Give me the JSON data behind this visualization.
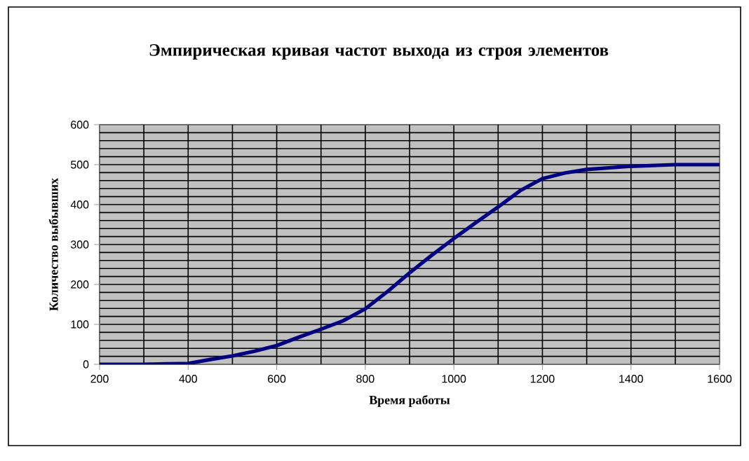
{
  "chart_data": {
    "type": "line",
    "title": "Эмпирическая кривая частот выхода из строя элементов",
    "xlabel": "Время работы",
    "ylabel": "Количество выбывших",
    "x": [
      200,
      300,
      350,
      400,
      450,
      500,
      550,
      600,
      650,
      700,
      750,
      800,
      850,
      900,
      950,
      1000,
      1050,
      1100,
      1150,
      1200,
      1250,
      1300,
      1400,
      1500,
      1600
    ],
    "series": [
      {
        "color": "#000080",
        "values": [
          0,
          0,
          1,
          2,
          12,
          21,
          33,
          47,
          68,
          88,
          109,
          139,
          182,
          229,
          273,
          315,
          355,
          394,
          435,
          465,
          479,
          488,
          496,
          500,
          500
        ]
      }
    ],
    "xlim": [
      200,
      1600
    ],
    "ylim": [
      0,
      600
    ],
    "xticks": [
      200,
      {
        "value": 300,
        "label": null
      },
      400,
      {
        "value": 500,
        "label": null
      },
      600,
      {
        "value": 700,
        "label": null
      },
      800,
      {
        "value": 900,
        "label": null
      },
      1000,
      {
        "value": 1100,
        "label": null
      },
      1200,
      {
        "value": 1300,
        "label": null
      },
      1400,
      {
        "value": 1500,
        "label": null
      },
      1600
    ],
    "yticks": [
      0,
      {
        "value": 20,
        "label": null
      },
      {
        "value": 40,
        "label": null
      },
      {
        "value": 60,
        "label": null
      },
      {
        "value": 80,
        "label": null
      },
      100,
      {
        "value": 120,
        "label": null
      },
      {
        "value": 140,
        "label": null
      },
      {
        "value": 160,
        "label": null
      },
      {
        "value": 180,
        "label": null
      },
      200,
      {
        "value": 220,
        "label": null
      },
      {
        "value": 240,
        "label": null
      },
      {
        "value": 260,
        "label": null
      },
      {
        "value": 280,
        "label": null
      },
      300,
      {
        "value": 320,
        "label": null
      },
      {
        "value": 340,
        "label": null
      },
      {
        "value": 360,
        "label": null
      },
      {
        "value": 380,
        "label": null
      },
      400,
      {
        "value": 420,
        "label": null
      },
      {
        "value": 440,
        "label": null
      },
      {
        "value": 460,
        "label": null
      },
      {
        "value": 480,
        "label": null
      },
      500,
      {
        "value": 520,
        "label": null
      },
      {
        "value": 540,
        "label": null
      },
      {
        "value": 560,
        "label": null
      },
      {
        "value": 580,
        "label": null
      },
      600
    ],
    "grid": true,
    "marker": "none",
    "line_style": "solid"
  }
}
